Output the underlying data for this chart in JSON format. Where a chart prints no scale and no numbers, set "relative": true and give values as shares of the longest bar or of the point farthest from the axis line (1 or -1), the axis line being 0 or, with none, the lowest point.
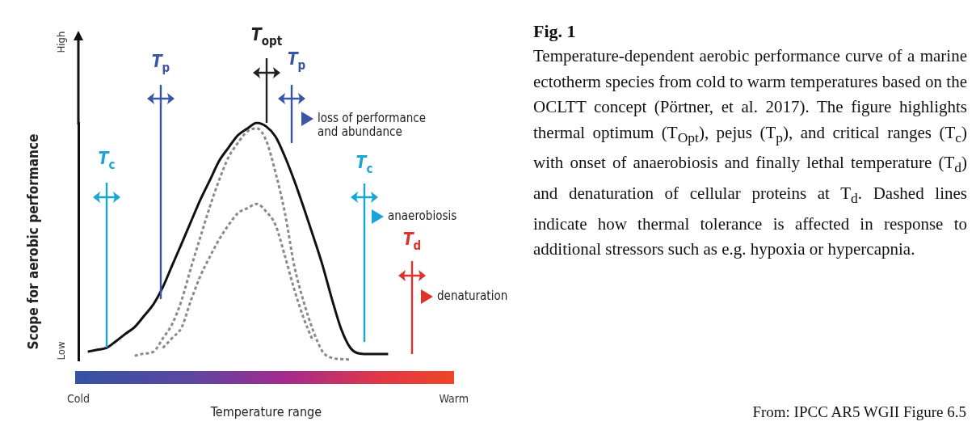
{
  "chart_data": {
    "type": "line",
    "title": "Fig. 1",
    "xlabel": "Temperature range",
    "ylabel": "Scope for aerobic performance",
    "relative": true,
    "categories": [
      "Cold",
      null,
      null,
      null,
      null,
      null,
      null,
      null,
      null,
      null,
      null,
      null,
      null,
      null,
      null,
      null,
      null,
      null,
      null,
      null,
      null,
      null,
      null,
      null,
      null,
      null,
      null,
      null,
      null,
      null,
      null,
      null,
      null,
      null,
      null,
      null,
      null,
      null,
      null,
      null,
      "Warm"
    ],
    "grid": false,
    "legend": false,
    "marker": "none",
    "series": [
      {
        "color": "#111111",
        "line_style": "solid",
        "values": [
          null,
          0.037,
          0.045,
          0.053,
          0.081,
          0.112,
          0.141,
          0.188,
          0.237,
          0.309,
          0.401,
          0.492,
          0.585,
          0.677,
          0.758,
          0.84,
          0.896,
          0.948,
          0.976,
          1,
          0.985,
          0.942,
          0.858,
          0.757,
          0.644,
          0.525,
          0.402,
          0.26,
          0.132,
          0.052,
          0.029,
          0.027,
          0.027,
          0.027,
          null,
          null,
          null,
          null,
          null,
          null,
          null
        ]
      },
      {
        "color": "#8a8a8a",
        "line_style": "dashed",
        "values": [
          null,
          null,
          null,
          null,
          null,
          null,
          0.02,
          0.029,
          0.037,
          0.093,
          0.154,
          0.254,
          0.391,
          0.52,
          0.646,
          0.76,
          0.856,
          0.916,
          0.964,
          0.977,
          0.926,
          0.791,
          0.621,
          0.398,
          0.247,
          0.127,
          0.038,
          0.011,
          0.006,
          0.004,
          null,
          null,
          null,
          null,
          null,
          null,
          null,
          null,
          null,
          null,
          null
        ]
      },
      {
        "color": "#8a8a8a",
        "line_style": "dashed",
        "values": [
          null,
          null,
          null,
          null,
          null,
          null,
          null,
          null,
          null,
          0.053,
          0.095,
          0.139,
          0.254,
          0.356,
          0.436,
          0.51,
          0.57,
          0.62,
          0.641,
          0.659,
          0.627,
          0.57,
          0.44,
          0.299,
          0.178,
          0.081,
          null,
          null,
          null,
          null,
          null,
          null,
          null,
          null,
          null,
          null,
          null,
          null,
          null,
          null,
          null
        ]
      }
    ],
    "annotations": [
      "T$_{c}$",
      "T$_{p}$",
      "T$_{opt}$",
      "T$_{p}$",
      "T$_{c}$",
      "T$_{d}$",
      "loss of performance\nand abundance",
      "anaerobiosis",
      "denaturation",
      "Low",
      "High",
      "Temperature-dependent aerobic performance curve of a marine ectotherm species from cold to warm temperatures based on the OCLTT concept (Pörtner, et al. 2017). The figure highlights thermal optimum (T$_{Opt}$), pejus (T$_{p}$), and critical ranges (T$_{c}$) with onset of anaerobiosis and finally lethal temperature (T$_{d}$) and denaturation of cellular proteins at T$_{d}$. Dashed lines indicate how thermal tolerance is affected in response to additional stressors such as e.g. hypoxia or hypercapnia.",
      "From: IPCC AR5 WGII Figure 6.5"
    ]
  }
}
